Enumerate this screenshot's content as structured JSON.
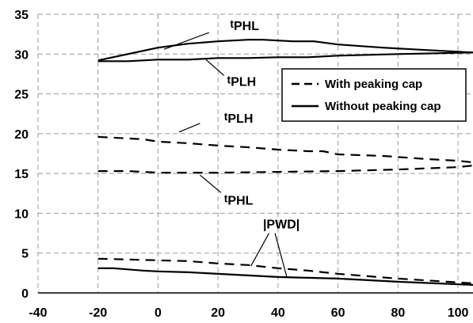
{
  "chart_data": {
    "type": "line",
    "xlim": [
      -40,
      105
    ],
    "ylim": [
      0,
      35
    ],
    "x_ticks": [
      -40,
      -20,
      0,
      20,
      40,
      60,
      80,
      100
    ],
    "y_ticks": [
      0,
      5,
      10,
      15,
      20,
      25,
      30,
      35
    ],
    "grid": "dashed",
    "legend_position": "right",
    "legend": [
      {
        "label": "With peaking cap",
        "style": "dashed"
      },
      {
        "label": "Without peaking cap",
        "style": "solid"
      }
    ],
    "series": [
      {
        "style": "solid",
        "x": [
          -20,
          0,
          10,
          20,
          30,
          35,
          45,
          52,
          60,
          75,
          90,
          105
        ],
        "y": [
          29.2,
          30.8,
          31.3,
          31.6,
          31.8,
          31.8,
          31.6,
          31.6,
          31.2,
          30.8,
          30.5,
          30.2
        ]
      },
      {
        "style": "solid",
        "x": [
          -20,
          -10,
          0,
          10,
          20,
          30,
          40,
          50,
          60,
          80,
          105
        ],
        "y": [
          29.1,
          29.1,
          29.3,
          29.3,
          29.5,
          29.5,
          29.6,
          29.6,
          29.8,
          30.0,
          30.2
        ]
      },
      {
        "style": "dashed",
        "x": [
          -20,
          -5,
          0,
          10,
          20,
          30,
          40,
          50,
          55,
          60,
          75,
          90,
          100,
          105
        ],
        "y": [
          19.6,
          19.3,
          19.0,
          18.8,
          18.5,
          18.3,
          18.0,
          17.8,
          17.8,
          17.4,
          17.2,
          16.8,
          16.6,
          16.4
        ]
      },
      {
        "style": "dashed",
        "x": [
          -20,
          -10,
          0,
          20,
          40,
          60,
          80,
          100,
          105
        ],
        "y": [
          15.3,
          15.3,
          15.1,
          15.1,
          15.2,
          15.3,
          15.5,
          15.8,
          16.0
        ]
      },
      {
        "style": "dashed",
        "x": [
          -20,
          0,
          10,
          20,
          30,
          40,
          50,
          60,
          80,
          105
        ],
        "y": [
          4.3,
          4.1,
          4.0,
          3.7,
          3.5,
          3.1,
          2.8,
          2.4,
          1.8,
          1.2
        ]
      },
      {
        "style": "solid",
        "x": [
          -20,
          -15,
          -5,
          0,
          10,
          20,
          30,
          40,
          50,
          60,
          80,
          105
        ],
        "y": [
          3.1,
          3.1,
          2.8,
          2.7,
          2.6,
          2.4,
          2.2,
          2.0,
          1.9,
          1.8,
          1.4,
          1.0
        ]
      }
    ],
    "annotations": [
      {
        "text": "PHL",
        "prefix": "t",
        "x": 24,
        "y": 33.2
      },
      {
        "text": "PLH",
        "prefix": "t",
        "x": 23,
        "y": 26.2
      },
      {
        "text": "PLH",
        "prefix": "t",
        "x": 22,
        "y": 21.6
      },
      {
        "text": "PHL",
        "prefix": "t",
        "x": 22,
        "y": 11.3
      },
      {
        "text": "|PWD|",
        "prefix": "",
        "x": 35,
        "y": 8.1
      }
    ],
    "leader_lines": [
      [
        [
          17,
          32.7
        ],
        [
          2,
          30.6
        ]
      ],
      [
        [
          22,
          27.3
        ],
        [
          16,
          29.3
        ]
      ],
      [
        [
          14,
          21.3
        ],
        [
          7,
          20.2
        ]
      ],
      [
        [
          21,
          12.6
        ],
        [
          14,
          14.8
        ]
      ],
      [
        [
          37,
          7.5
        ],
        [
          31,
          3.4
        ]
      ],
      [
        [
          39,
          7.5
        ],
        [
          43,
          1.9
        ]
      ]
    ]
  }
}
